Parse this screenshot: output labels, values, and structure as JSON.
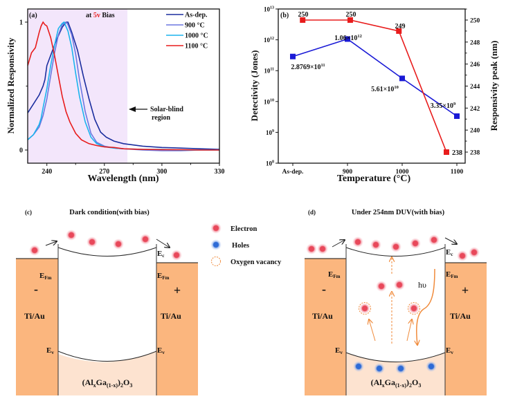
{
  "chart_data": [
    {
      "panel": "(a)",
      "type": "line",
      "title": "",
      "annotation_bias_prefix": "at ",
      "annotation_bias_value": "5v",
      "annotation_bias_suffix": " Bias",
      "xlabel": "Wavelength (nm)",
      "ylabel": "Normalized Responsivity",
      "xlim": [
        230,
        330
      ],
      "ylim": [
        -0.1,
        1.1
      ],
      "xticks": [
        240,
        270,
        300,
        330
      ],
      "yticks": [
        0,
        1
      ],
      "legend_position": "top-right",
      "shaded_region": {
        "x": [
          230,
          282
        ],
        "color": "#f3e6fb",
        "label_line1": "Solar-blind",
        "label_line2": "region"
      },
      "series": [
        {
          "name": "As-dep.",
          "color": "#1a2d9e",
          "x": [
            230,
            233,
            236,
            238,
            239,
            240,
            242,
            245,
            248,
            250,
            251,
            253,
            256,
            259,
            262,
            265,
            268,
            271,
            275,
            280,
            290,
            300,
            310,
            320,
            330
          ],
          "y": [
            0.29,
            0.36,
            0.43,
            0.5,
            0.55,
            0.66,
            0.74,
            0.86,
            0.96,
            1.0,
            1.0,
            0.92,
            0.78,
            0.58,
            0.4,
            0.24,
            0.14,
            0.1,
            0.07,
            0.05,
            0.03,
            0.02,
            0.015,
            0.01,
            0.005
          ]
        },
        {
          "name": "900 °C",
          "color": "#6b77e0",
          "x": [
            230,
            233,
            236,
            238,
            240,
            242,
            244,
            246,
            248,
            250,
            251,
            253,
            255,
            257,
            260,
            263,
            266,
            270,
            275,
            280,
            290,
            300,
            310,
            320,
            330
          ],
          "y": [
            0.08,
            0.12,
            0.18,
            0.27,
            0.4,
            0.58,
            0.76,
            0.9,
            0.98,
            1.0,
            0.98,
            0.9,
            0.75,
            0.55,
            0.3,
            0.13,
            0.06,
            0.03,
            0.015,
            0.01,
            0.0,
            -0.005,
            -0.005,
            0.0,
            0.0
          ]
        },
        {
          "name": "1000 °C",
          "color": "#1ab4ee",
          "x": [
            230,
            233,
            236,
            237,
            238,
            240,
            242,
            244,
            246,
            248,
            249,
            251,
            253,
            255,
            257,
            260,
            263,
            266,
            270,
            275,
            280,
            290,
            300,
            310,
            320,
            330
          ],
          "y": [
            0.08,
            0.12,
            0.2,
            0.25,
            0.33,
            0.48,
            0.66,
            0.82,
            0.95,
            0.99,
            1.0,
            0.93,
            0.8,
            0.6,
            0.42,
            0.22,
            0.1,
            0.05,
            0.025,
            0.015,
            0.01,
            0.005,
            0.005,
            0.0,
            0.0,
            0.0
          ]
        },
        {
          "name": "1100 °C",
          "color": "#e81c1c",
          "x": [
            230,
            232,
            234,
            236,
            237,
            238,
            239,
            240,
            242,
            244,
            246,
            248,
            250,
            252,
            255,
            258,
            262,
            266,
            270,
            275,
            280,
            290,
            300,
            310,
            320,
            330
          ],
          "y": [
            0.66,
            0.76,
            0.8,
            0.92,
            0.97,
            1.0,
            0.98,
            0.97,
            0.88,
            0.74,
            0.58,
            0.42,
            0.3,
            0.22,
            0.13,
            0.08,
            0.05,
            0.035,
            0.025,
            0.02,
            0.01,
            0.005,
            0.003,
            0.002,
            0.0,
            0.0
          ]
        }
      ]
    },
    {
      "panel": "(b)",
      "type": "line",
      "title": "",
      "xlabel": "Temperature (°C)",
      "ylabel_left": "Detectivity (Jones)",
      "ylabel_right": "Responsivity peak (nm)",
      "categories": [
        "As-dep.",
        "900",
        "1000",
        "1100"
      ],
      "y_left_scale": "log",
      "y_left_lim": [
        100000000.0,
        10000000000000.0
      ],
      "y_left_ticks": [
        "10^8",
        "10^9",
        "10^10",
        "10^11",
        "10^12",
        "10^13"
      ],
      "y_right_lim": [
        237,
        251
      ],
      "y_right_ticks": [
        238,
        240,
        242,
        244,
        246,
        248,
        250
      ],
      "series": [
        {
          "name": "Detectivity",
          "axis": "left",
          "color": "#1a1ad6",
          "values": [
            287690000000.0,
            1060000000000.0,
            56100000000.0,
            3350000000.0
          ],
          "labels": [
            "2.8769×10",
            "1.06×10",
            "5.61×10",
            "3.35×10"
          ],
          "label_exponents": [
            "11",
            "12",
            "10",
            "9"
          ]
        },
        {
          "name": "Responsivity peak",
          "axis": "right",
          "color": "#e81c1c",
          "category_positions": [
            0.18,
            1.05,
            1.94,
            2.81
          ],
          "values": [
            250,
            250,
            249,
            238
          ],
          "labels": [
            "250",
            "250",
            "249",
            "238"
          ]
        }
      ]
    }
  ],
  "diagram_c": {
    "panel": "(c)",
    "title": "Dark condition(with bias)",
    "left_metal": "Ti/Au",
    "right_metal": "Ti/Au",
    "left_sign": "-",
    "right_sign": "+",
    "ec_label": "E",
    "ec_sub": "c",
    "efm_label": "E",
    "efm_sub": "Fm",
    "ev_label": "E",
    "ev_sub": "v",
    "material": {
      "a": "(Al",
      "x": "x",
      "b": "Ga",
      "sub1": "(1-x)",
      "c": ")",
      "sub2": "2",
      "d": "O",
      "sub3": "3"
    }
  },
  "diagram_d": {
    "panel": "(d)",
    "title": "Under 254nm DUV(with bias)",
    "left_metal": "Ti/Au",
    "right_metal": "Ti/Au",
    "left_sign": "-",
    "right_sign": "+",
    "photon_label": "hυ"
  },
  "legend": {
    "items": [
      {
        "label": "Electron",
        "color": "#e8485a"
      },
      {
        "label": "Holes",
        "color": "#2e6bd6"
      },
      {
        "label": "Oxygen vacancy",
        "color": "#f08a3a"
      }
    ]
  },
  "colors": {
    "metal": "#fbb67e",
    "semiconductor_bottom": "#fde3d0",
    "electron": "#e8485a",
    "hole": "#2e6bd6",
    "arrow_orange": "#f08a3a"
  }
}
